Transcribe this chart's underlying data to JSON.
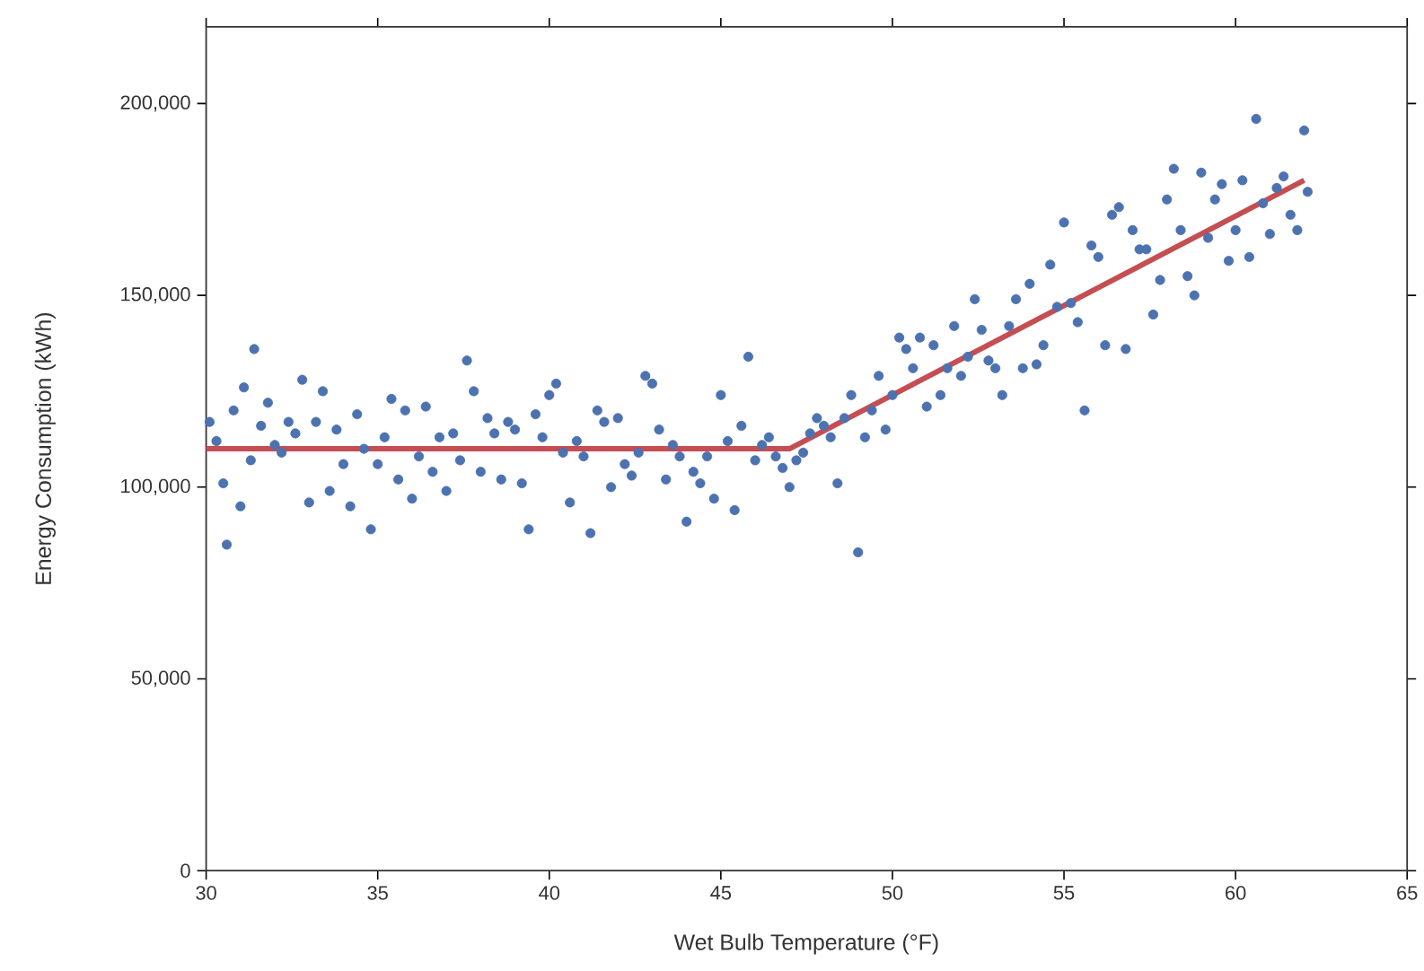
{
  "chart_data": {
    "type": "scatter",
    "xlabel": "Wet Bulb Temperature (°F)",
    "ylabel": "Energy Consumption (kWh)",
    "xlim": [
      30,
      65
    ],
    "xticks": [
      30,
      35,
      40,
      45,
      50,
      55,
      60,
      65
    ],
    "ylim": [
      0,
      220000
    ],
    "yticks": [
      {
        "value": 0,
        "label": "0"
      },
      {
        "value": 50000,
        "label": "50,000"
      },
      {
        "value": 100000,
        "label": "100,000"
      },
      {
        "value": 150000,
        "label": "150,000"
      },
      {
        "value": 200000,
        "label": "200,000"
      }
    ],
    "grid": false,
    "series": [
      {
        "color": "#4c72b0",
        "marker": "circle",
        "x": [
          30.1,
          30.3,
          30.5,
          30.6,
          30.8,
          31.0,
          31.1,
          31.3,
          31.4,
          31.6,
          31.8,
          32.0,
          32.2,
          32.4,
          32.6,
          32.8,
          33.0,
          33.2,
          33.4,
          33.6,
          33.8,
          34.0,
          34.2,
          34.4,
          34.6,
          34.8,
          35.0,
          35.2,
          35.4,
          35.6,
          35.8,
          36.0,
          36.2,
          36.4,
          36.6,
          36.8,
          37.0,
          37.2,
          37.4,
          37.6,
          37.8,
          38.0,
          38.2,
          38.4,
          38.6,
          38.8,
          39.0,
          39.2,
          39.4,
          39.6,
          39.8,
          40.0,
          40.2,
          40.4,
          40.6,
          40.8,
          41.0,
          41.2,
          41.4,
          41.6,
          41.8,
          42.0,
          42.2,
          42.4,
          42.6,
          42.8,
          43.0,
          43.2,
          43.4,
          43.6,
          43.8,
          44.0,
          44.2,
          44.4,
          44.6,
          44.8,
          45.0,
          45.2,
          45.4,
          45.6,
          45.8,
          46.0,
          46.2,
          46.4,
          46.6,
          46.8,
          47.0,
          47.2,
          47.4,
          47.6,
          47.8,
          48.0,
          48.2,
          48.4,
          48.6,
          48.8,
          49.0,
          49.2,
          49.4,
          49.6,
          49.8,
          50.0,
          50.2,
          50.4,
          50.6,
          50.8,
          51.0,
          51.2,
          51.4,
          51.6,
          51.8,
          52.0,
          52.2,
          52.4,
          52.6,
          52.8,
          53.0,
          53.2,
          53.4,
          53.6,
          53.8,
          54.0,
          54.2,
          54.4,
          54.6,
          54.8,
          55.0,
          55.2,
          55.4,
          55.6,
          55.8,
          56.0,
          56.2,
          56.4,
          56.6,
          56.8,
          57.0,
          57.2,
          57.4,
          57.6,
          57.8,
          58.0,
          58.2,
          58.4,
          58.6,
          58.8,
          59.0,
          59.2,
          59.4,
          59.6,
          59.8,
          60.0,
          60.2,
          60.4,
          60.6,
          60.8,
          61.0,
          61.2,
          61.4,
          61.6,
          61.8,
          62.0,
          62.1
        ],
        "values": [
          117000,
          112000,
          101000,
          85000,
          120000,
          95000,
          126000,
          107000,
          136000,
          116000,
          122000,
          111000,
          109000,
          117000,
          114000,
          128000,
          96000,
          117000,
          125000,
          99000,
          115000,
          106000,
          95000,
          119000,
          110000,
          89000,
          106000,
          113000,
          123000,
          102000,
          120000,
          97000,
          108000,
          121000,
          104000,
          113000,
          99000,
          114000,
          107000,
          133000,
          125000,
          104000,
          118000,
          114000,
          102000,
          117000,
          115000,
          101000,
          89000,
          119000,
          113000,
          124000,
          127000,
          109000,
          96000,
          112000,
          108000,
          88000,
          120000,
          117000,
          100000,
          118000,
          106000,
          103000,
          109000,
          129000,
          127000,
          115000,
          102000,
          111000,
          108000,
          91000,
          104000,
          101000,
          108000,
          97000,
          124000,
          112000,
          94000,
          116000,
          134000,
          107000,
          111000,
          113000,
          108000,
          105000,
          100000,
          107000,
          109000,
          114000,
          118000,
          116000,
          113000,
          101000,
          118000,
          124000,
          83000,
          113000,
          120000,
          129000,
          115000,
          124000,
          139000,
          136000,
          131000,
          139000,
          121000,
          137000,
          124000,
          131000,
          142000,
          129000,
          134000,
          149000,
          141000,
          133000,
          131000,
          124000,
          142000,
          149000,
          131000,
          153000,
          132000,
          137000,
          158000,
          147000,
          169000,
          148000,
          143000,
          120000,
          163000,
          160000,
          137000,
          171000,
          173000,
          136000,
          167000,
          162000,
          162000,
          145000,
          154000,
          175000,
          183000,
          167000,
          155000,
          150000,
          182000,
          165000,
          175000,
          179000,
          159000,
          167000,
          180000,
          160000,
          196000,
          174000,
          166000,
          178000,
          181000,
          171000,
          167000,
          193000,
          177000
        ]
      },
      {
        "type": "line",
        "color": "#c44e52",
        "marker": "none",
        "line_style": "solid",
        "x": [
          30,
          47,
          62
        ],
        "values": [
          110000,
          110000,
          180000
        ]
      }
    ]
  }
}
